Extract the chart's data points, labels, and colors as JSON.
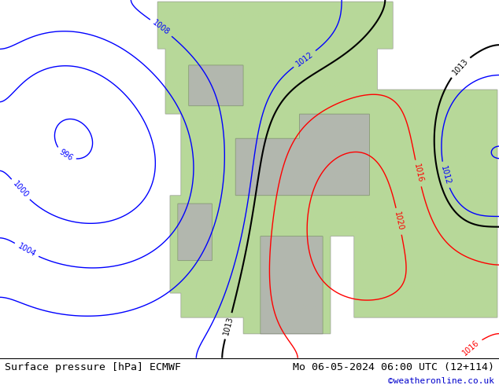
{
  "title_left": "Surface pressure [hPa] ECMWF",
  "title_right": "Mo 06-05-2024 06:00 UTC (12+114)",
  "credit": "©weatheronline.co.uk",
  "background_main": "#d8d8d8",
  "background_land_green": "#b8d89a",
  "background_land_gray": "#c0c0c0",
  "fig_width": 6.34,
  "fig_height": 4.9,
  "dpi": 100,
  "bottom_bar_color": "#ffffff",
  "bottom_bar_height": 0.055,
  "font_size_title": 9.5,
  "font_size_credit": 8,
  "credit_color": "#0000cc"
}
